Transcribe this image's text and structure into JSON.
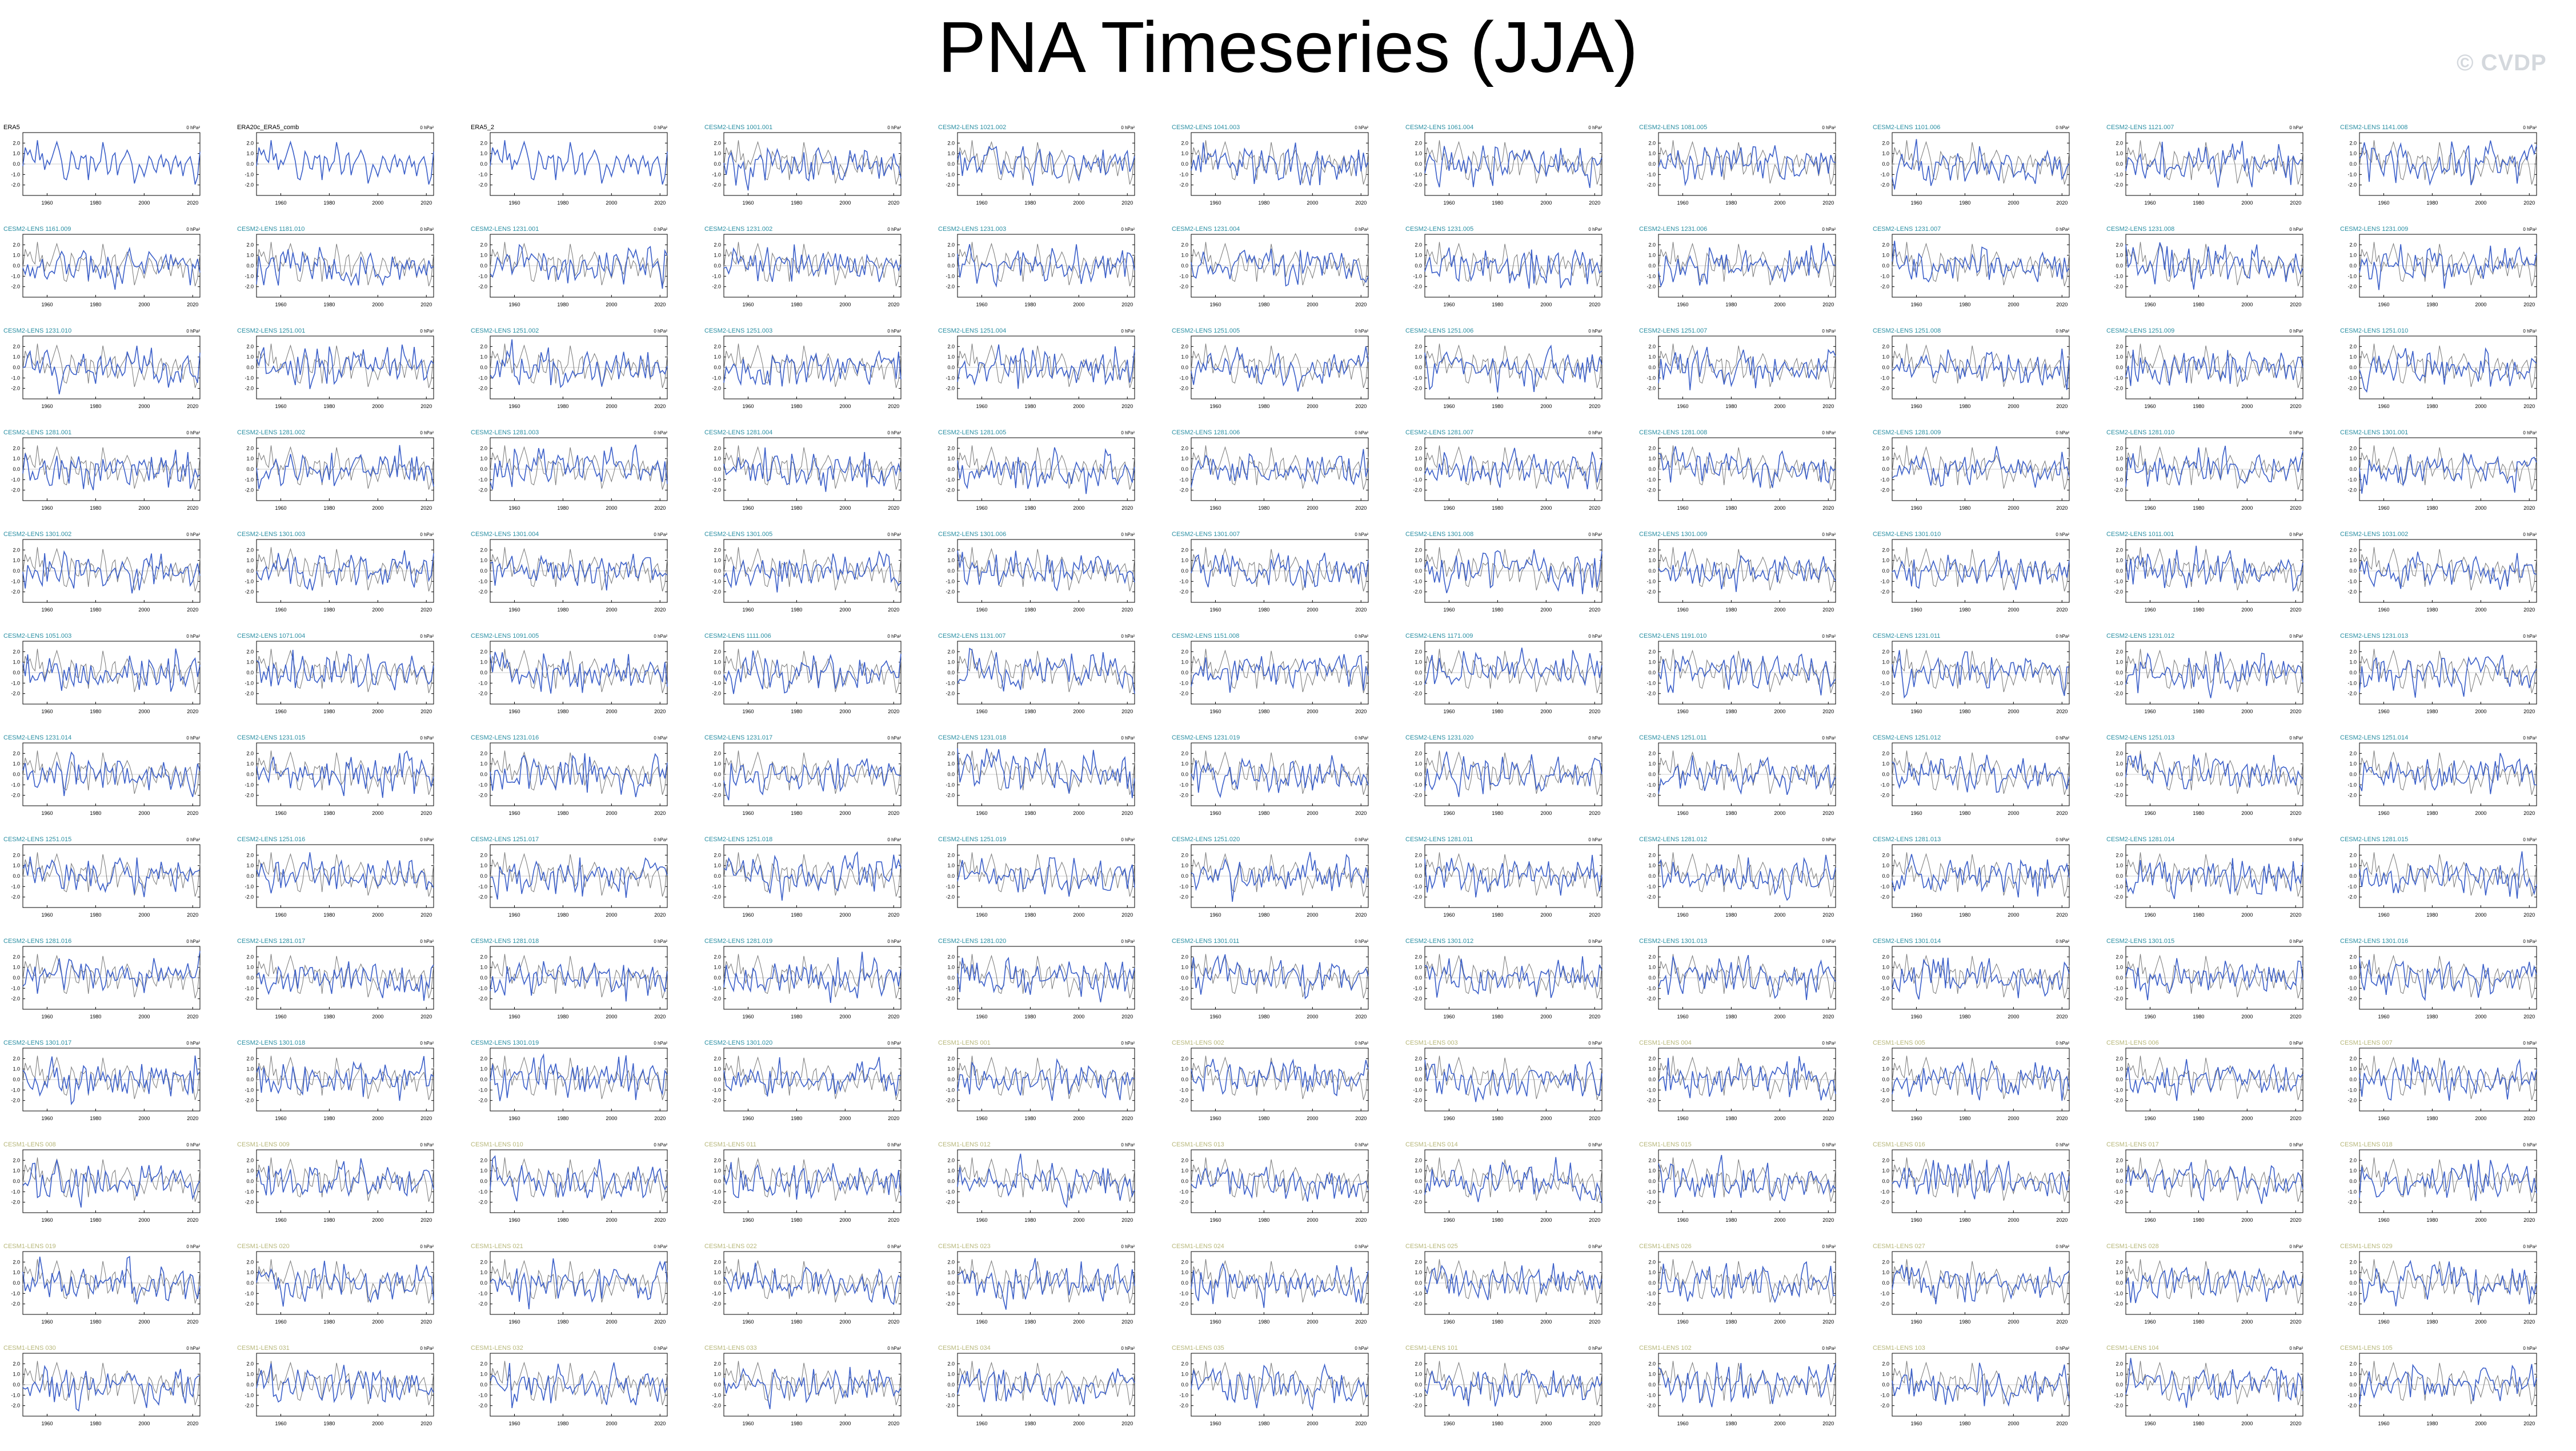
{
  "title": "PNA Timeseries (JJA)",
  "watermark": "© CVDP",
  "colors": {
    "obs_title": "#000000",
    "cesm2_title": "#2a8fa3",
    "cesm1_title": "#b7b77a",
    "model_line": "#3b5fc9",
    "obs_line": "#777777",
    "axis": "#000000"
  },
  "chart_data": {
    "type": "line",
    "layout": "small-multiples",
    "columns": 11,
    "rows": 13,
    "units_label": "0 hPa²",
    "x_range": [
      1950,
      2023
    ],
    "ylim": [
      -3.0,
      3.0
    ],
    "y_ticks": [
      "2.0",
      "1.0",
      "0.0",
      "-1.0",
      "-2.0"
    ],
    "x_ticks": [
      "1960",
      "1980",
      "2000",
      "2020"
    ],
    "panels": [
      "ERA5",
      "ERA20c_ERA5_comb",
      "ERA5_2",
      "CESM2-LENS 1001.001",
      "CESM2-LENS 1021.002",
      "CESM2-LENS 1041.003",
      "CESM2-LENS 1061.004",
      "CESM2-LENS 1081.005",
      "CESM2-LENS 1101.006",
      "CESM2-LENS 1121.007",
      "CESM2-LENS 1141.008",
      "CESM2-LENS 1161.009",
      "CESM2-LENS 1181.010",
      "CESM2-LENS 1231.001",
      "CESM2-LENS 1231.002",
      "CESM2-LENS 1231.003",
      "CESM2-LENS 1231.004",
      "CESM2-LENS 1231.005",
      "CESM2-LENS 1231.006",
      "CESM2-LENS 1231.007",
      "CESM2-LENS 1231.008",
      "CESM2-LENS 1231.009",
      "CESM2-LENS 1231.010",
      "CESM2-LENS 1251.001",
      "CESM2-LENS 1251.002",
      "CESM2-LENS 1251.003",
      "CESM2-LENS 1251.004",
      "CESM2-LENS 1251.005",
      "CESM2-LENS 1251.006",
      "CESM2-LENS 1251.007",
      "CESM2-LENS 1251.008",
      "CESM2-LENS 1251.009",
      "CESM2-LENS 1251.010",
      "CESM2-LENS 1281.001",
      "CESM2-LENS 1281.002",
      "CESM2-LENS 1281.003",
      "CESM2-LENS 1281.004",
      "CESM2-LENS 1281.005",
      "CESM2-LENS 1281.006",
      "CESM2-LENS 1281.007",
      "CESM2-LENS 1281.008",
      "CESM2-LENS 1281.009",
      "CESM2-LENS 1281.010",
      "CESM2-LENS 1301.001",
      "CESM2-LENS 1301.002",
      "CESM2-LENS 1301.003",
      "CESM2-LENS 1301.004",
      "CESM2-LENS 1301.005",
      "CESM2-LENS 1301.006",
      "CESM2-LENS 1301.007",
      "CESM2-LENS 1301.008",
      "CESM2-LENS 1301.009",
      "CESM2-LENS 1301.010",
      "CESM2-LENS 1011.001",
      "CESM2-LENS 1031.002",
      "CESM2-LENS 1051.003",
      "CESM2-LENS 1071.004",
      "CESM2-LENS 1091.005",
      "CESM2-LENS 1111.006",
      "CESM2-LENS 1131.007",
      "CESM2-LENS 1151.008",
      "CESM2-LENS 1171.009",
      "CESM2-LENS 1191.010",
      "CESM2-LENS 1231.011",
      "CESM2-LENS 1231.012",
      "CESM2-LENS 1231.013",
      "CESM2-LENS 1231.014",
      "CESM2-LENS 1231.015",
      "CESM2-LENS 1231.016",
      "CESM2-LENS 1231.017",
      "CESM2-LENS 1231.018",
      "CESM2-LENS 1231.019",
      "CESM2-LENS 1231.020",
      "CESM2-LENS 1251.011",
      "CESM2-LENS 1251.012",
      "CESM2-LENS 1251.013",
      "CESM2-LENS 1251.014",
      "CESM2-LENS 1251.015",
      "CESM2-LENS 1251.016",
      "CESM2-LENS 1251.017",
      "CESM2-LENS 1251.018",
      "CESM2-LENS 1251.019",
      "CESM2-LENS 1251.020",
      "CESM2-LENS 1281.011",
      "CESM2-LENS 1281.012",
      "CESM2-LENS 1281.013",
      "CESM2-LENS 1281.014",
      "CESM2-LENS 1281.015",
      "CESM2-LENS 1281.016",
      "CESM2-LENS 1281.017",
      "CESM2-LENS 1281.018",
      "CESM2-LENS 1281.019",
      "CESM2-LENS 1281.020",
      "CESM2-LENS 1301.011",
      "CESM2-LENS 1301.012",
      "CESM2-LENS 1301.013",
      "CESM2-LENS 1301.014",
      "CESM2-LENS 1301.015",
      "CESM2-LENS 1301.016",
      "CESM2-LENS 1301.017",
      "CESM2-LENS 1301.018",
      "CESM2-LENS 1301.019",
      "CESM2-LENS 1301.020",
      "CESM1-LENS 001",
      "CESM1-LENS 002",
      "CESM1-LENS 003",
      "CESM1-LENS 004",
      "CESM1-LENS 005",
      "CESM1-LENS 006",
      "CESM1-LENS 007",
      "CESM1-LENS 008",
      "CESM1-LENS 009",
      "CESM1-LENS 010",
      "CESM1-LENS 011",
      "CESM1-LENS 012",
      "CESM1-LENS 013",
      "CESM1-LENS 014",
      "CESM1-LENS 015",
      "CESM1-LENS 016",
      "CESM1-LENS 017",
      "CESM1-LENS 018",
      "CESM1-LENS 019",
      "CESM1-LENS 020",
      "CESM1-LENS 021",
      "CESM1-LENS 022",
      "CESM1-LENS 023",
      "CESM1-LENS 024",
      "CESM1-LENS 025",
      "CESM1-LENS 026",
      "CESM1-LENS 027",
      "CESM1-LENS 028",
      "CESM1-LENS 029",
      "CESM1-LENS 030",
      "CESM1-LENS 031",
      "CESM1-LENS 032",
      "CESM1-LENS 033",
      "CESM1-LENS 034",
      "CESM1-LENS 035",
      "CESM1-LENS 101",
      "CESM1-LENS 102",
      "CESM1-LENS 103",
      "CESM1-LENS 104",
      "CESM1-LENS 105"
    ]
  }
}
